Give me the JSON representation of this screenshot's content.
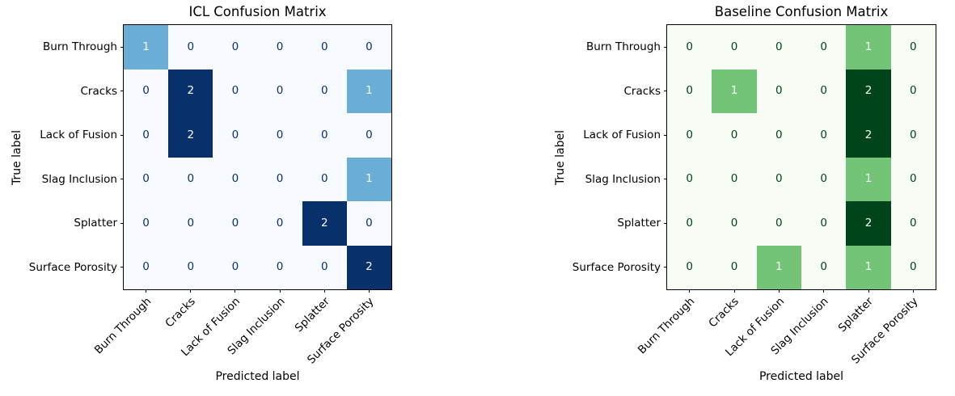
{
  "figure": {
    "background": "#ffffff"
  },
  "chart_data": [
    {
      "type": "heatmap",
      "title": "ICL Confusion Matrix",
      "xlabel": "Predicted label",
      "ylabel": "True label",
      "x_categories": [
        "Burn Through",
        "Cracks",
        "Lack of Fusion",
        "Slag Inclusion",
        "Splatter",
        "Surface Porosity"
      ],
      "y_categories": [
        "Burn Through",
        "Cracks",
        "Lack of Fusion",
        "Slag Inclusion",
        "Splatter",
        "Surface Porosity"
      ],
      "values": [
        [
          1,
          0,
          0,
          0,
          0,
          0
        ],
        [
          0,
          2,
          0,
          0,
          0,
          1
        ],
        [
          0,
          2,
          0,
          0,
          0,
          0
        ],
        [
          0,
          0,
          0,
          0,
          0,
          1
        ],
        [
          0,
          0,
          0,
          0,
          2,
          0
        ],
        [
          0,
          0,
          0,
          0,
          0,
          2
        ]
      ],
      "vmin": 0,
      "vmax": 2,
      "colormap": "Blues",
      "legend": "none",
      "grid": false,
      "x_tick_rotation": 45
    },
    {
      "type": "heatmap",
      "title": "Baseline Confusion Matrix",
      "xlabel": "Predicted label",
      "ylabel": "True label",
      "x_categories": [
        "Burn Through",
        "Cracks",
        "Lack of Fusion",
        "Slag Inclusion",
        "Splatter",
        "Surface Porosity"
      ],
      "y_categories": [
        "Burn Through",
        "Cracks",
        "Lack of Fusion",
        "Slag Inclusion",
        "Splatter",
        "Surface Porosity"
      ],
      "values": [
        [
          0,
          0,
          0,
          0,
          1,
          0
        ],
        [
          0,
          1,
          0,
          0,
          2,
          0
        ],
        [
          0,
          0,
          0,
          0,
          2,
          0
        ],
        [
          0,
          0,
          0,
          0,
          1,
          0
        ],
        [
          0,
          0,
          0,
          0,
          2,
          0
        ],
        [
          0,
          0,
          1,
          0,
          1,
          0
        ]
      ],
      "vmin": 0,
      "vmax": 2,
      "colormap": "Greens",
      "legend": "none",
      "grid": false,
      "x_tick_rotation": 45
    }
  ],
  "panel_styles": [
    {
      "cmap_stops": [
        "#f7fbff",
        "#6aaed6",
        "#08306b"
      ],
      "text_dark": "#08306b",
      "text_light": "#f7fbff"
    },
    {
      "cmap_stops": [
        "#f7fcf5",
        "#73c476",
        "#00441b"
      ],
      "text_dark": "#00441b",
      "text_light": "#f7fcf5"
    }
  ]
}
